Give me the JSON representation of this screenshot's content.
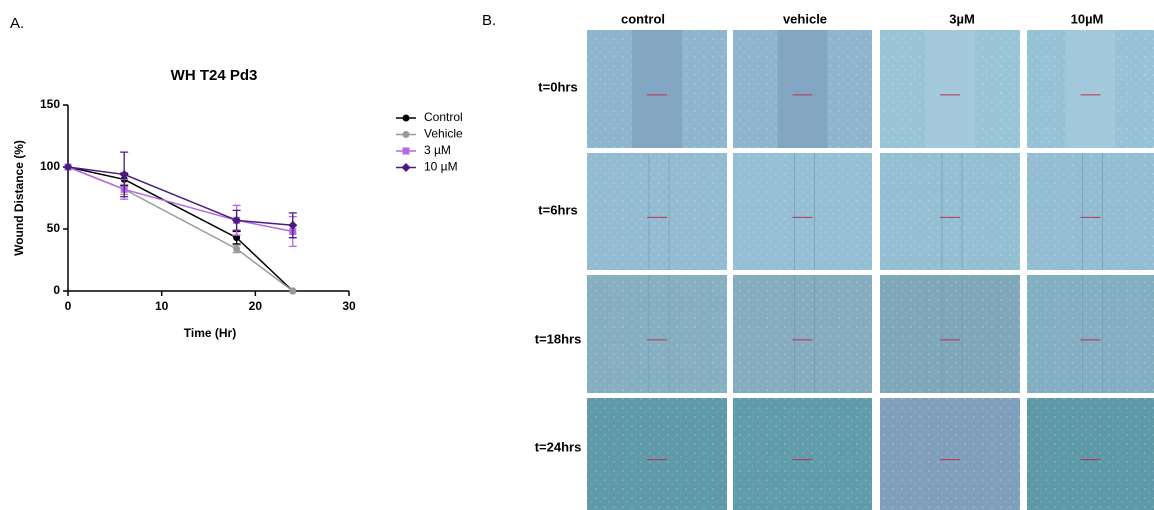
{
  "panel_labels": [
    "A.",
    "B."
  ],
  "chart_data": {
    "type": "line",
    "title": "WH T24 Pd3",
    "x_label": "Time (Hr)",
    "y_label": "Wound Distance (%)",
    "x": [
      0,
      6,
      18,
      24
    ],
    "series": [
      {
        "name": "Control",
        "color": "#000000",
        "marker": "circle",
        "values": [
          100,
          90,
          43,
          0
        ],
        "errors": [
          0,
          5,
          5,
          0
        ]
      },
      {
        "name": "Vehicle",
        "color": "#9a9a9a",
        "marker": "circle",
        "values": [
          100,
          82,
          34,
          0
        ],
        "errors": [
          0,
          4,
          3,
          0
        ]
      },
      {
        "name": "3 µM",
        "color": "#b368e6",
        "marker": "square",
        "values": [
          100,
          82,
          57,
          48
        ],
        "errors": [
          0,
          8,
          12,
          12
        ]
      },
      {
        "name": "10 µM",
        "color": "#4a1a80",
        "marker": "diamond",
        "values": [
          100,
          94,
          57,
          53
        ],
        "errors": [
          0,
          18,
          8,
          10
        ]
      }
    ],
    "xlim": [
      0,
      30
    ],
    "xticks": [
      0,
      10,
      20,
      30
    ],
    "ylim": [
      0,
      150
    ],
    "yticks": [
      0,
      50,
      100,
      150
    ],
    "legend": "right"
  },
  "panel_b": {
    "columns": [
      "control",
      "vehicle",
      "3µM",
      "10µM"
    ],
    "rows": [
      "t=0hrs",
      "t=6hrs",
      "t=18hrs",
      "t=24hrs"
    ]
  }
}
